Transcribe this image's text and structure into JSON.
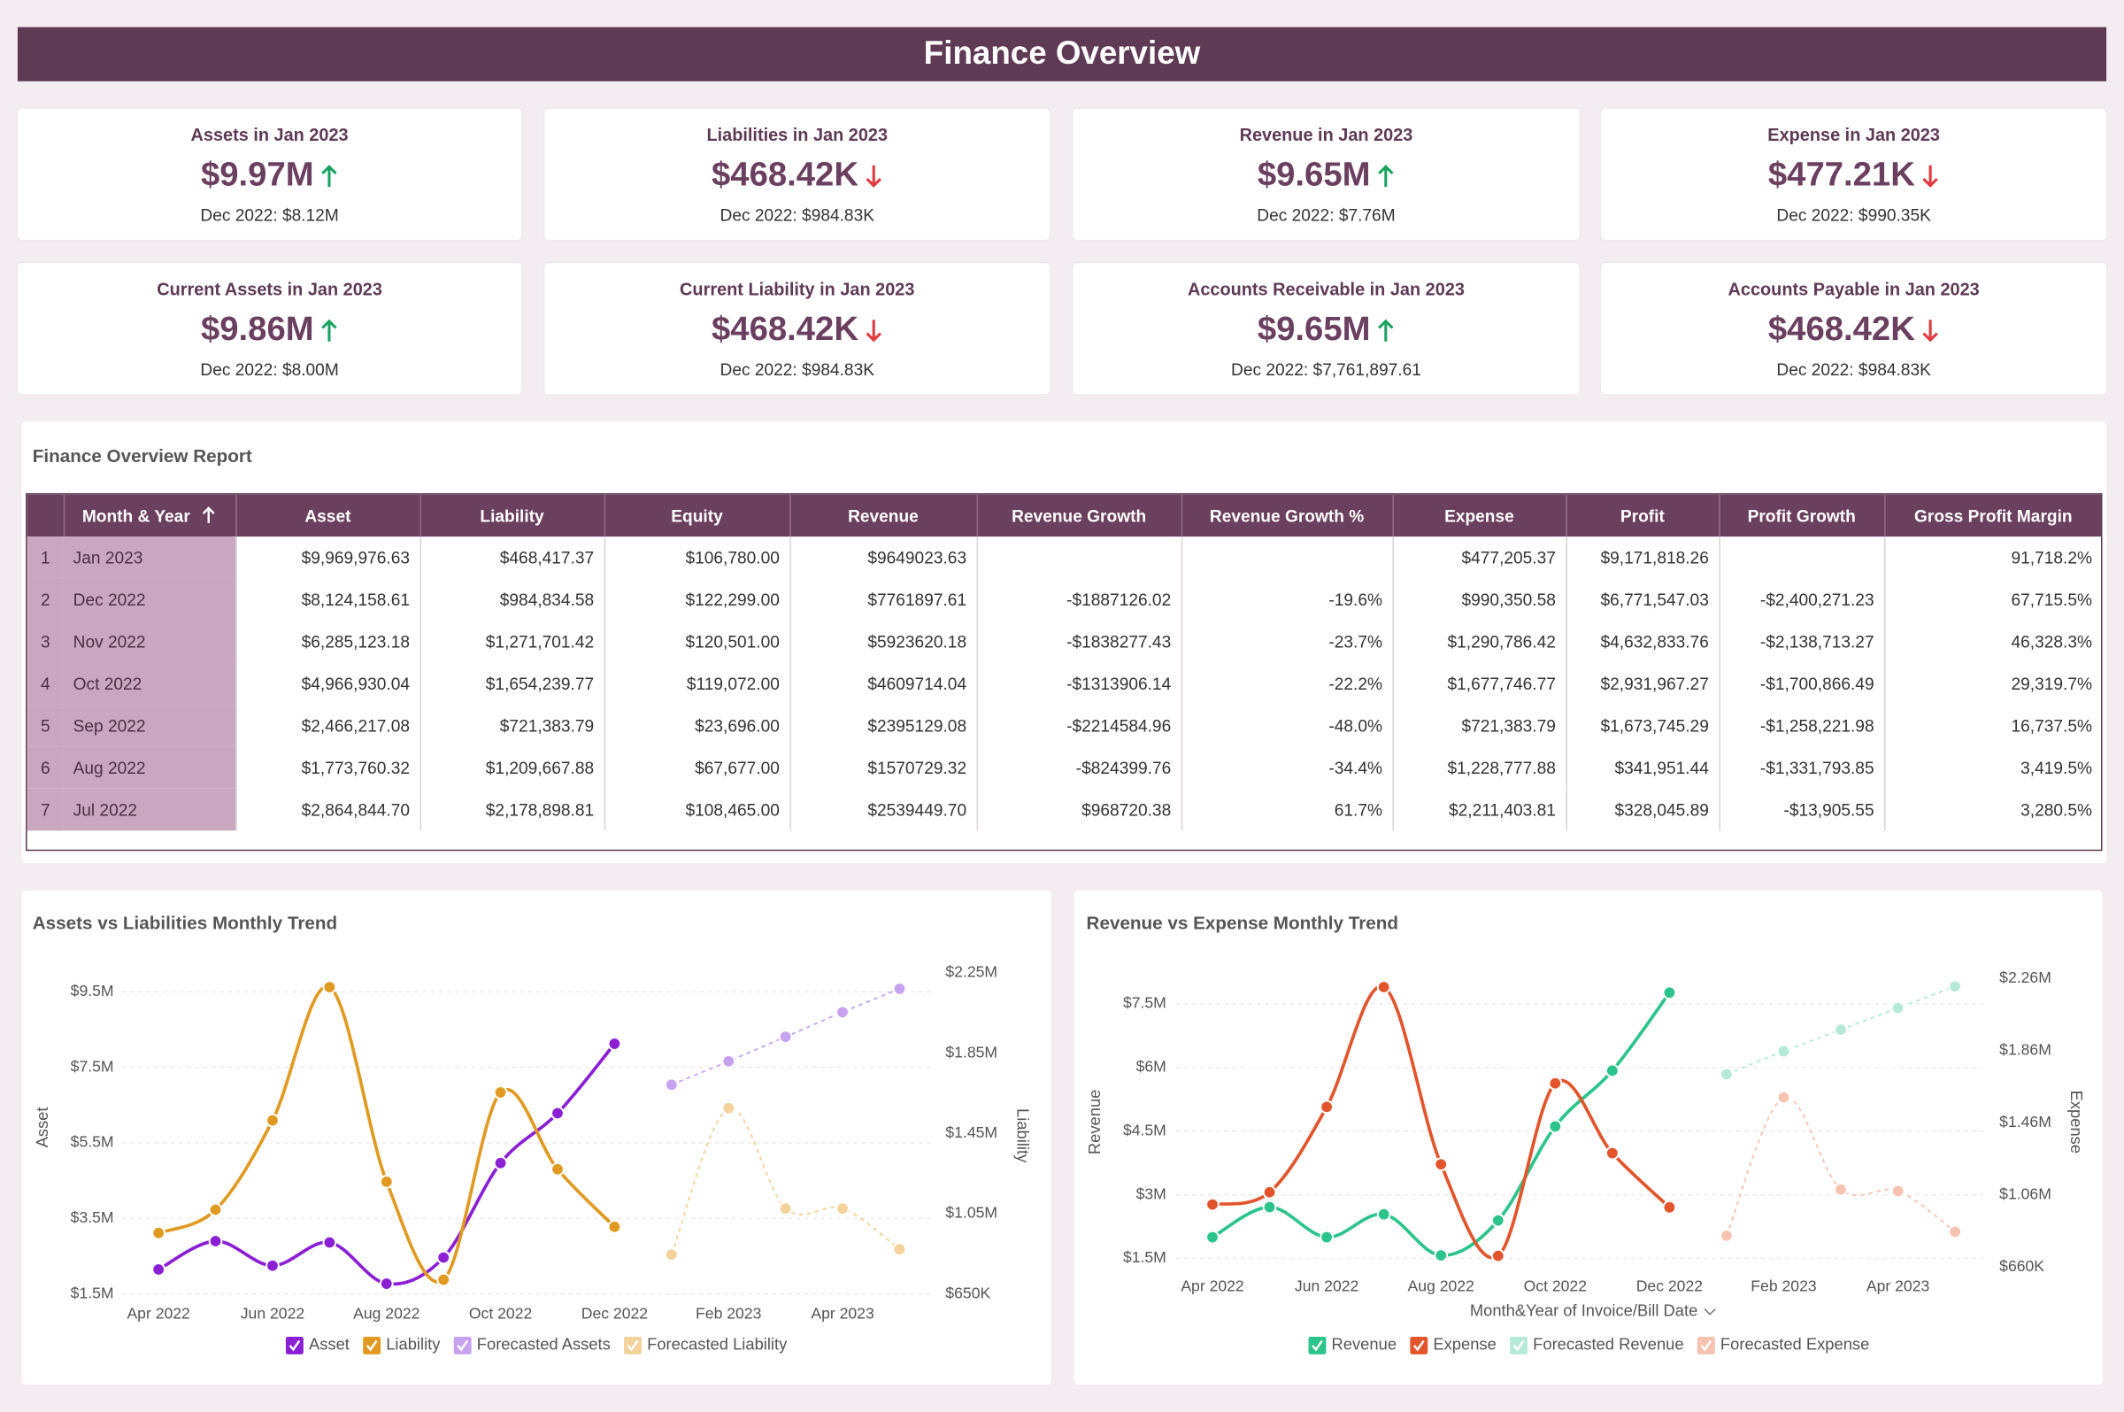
{
  "header": {
    "title": "Finance Overview"
  },
  "kpis": [
    {
      "label": "Assets in Jan 2023",
      "value": "$9.97M",
      "trend": "up",
      "comparison": "Dec 2022: $8.12M"
    },
    {
      "label": "Liabilities in Jan 2023",
      "value": "$468.42K",
      "trend": "down",
      "comparison": "Dec 2022: $984.83K"
    },
    {
      "label": "Revenue in Jan 2023",
      "value": "$9.65M",
      "trend": "up",
      "comparison": "Dec 2022: $7.76M"
    },
    {
      "label": "Expense in Jan 2023",
      "value": "$477.21K",
      "trend": "down",
      "comparison": "Dec 2022: $990.35K"
    },
    {
      "label": "Current Assets in Jan 2023",
      "value": "$9.86M",
      "trend": "up",
      "comparison": "Dec 2022: $8.00M"
    },
    {
      "label": "Current Liability in Jan 2023",
      "value": "$468.42K",
      "trend": "down",
      "comparison": "Dec 2022: $984.83K"
    },
    {
      "label": "Accounts Receivable in Jan 2023",
      "value": "$9.65M",
      "trend": "up",
      "comparison": "Dec 2022: $7,761,897.61"
    },
    {
      "label": "Accounts Payable in Jan 2023",
      "value": "$468.42K",
      "trend": "down",
      "comparison": "Dec 2022: $984.83K"
    }
  ],
  "table": {
    "title": "Finance Overview Report",
    "columns": [
      "Month & Year",
      "Asset",
      "Liability",
      "Equity",
      "Revenue",
      "Revenue Growth",
      "Revenue Growth %",
      "Expense",
      "Profit",
      "Profit Growth",
      "Gross Profit Margin"
    ],
    "rows": [
      {
        "number": 1,
        "cells": [
          "Jan 2023",
          "$9,969,976.63",
          "$468,417.37",
          "$106,780.00",
          "$9649023.63",
          null,
          null,
          "$477,205.37",
          "$9,171,818.26",
          null,
          "91,718.2%"
        ]
      },
      {
        "number": 2,
        "cells": [
          "Dec 2022",
          "$8,124,158.61",
          "$984,834.58",
          "$122,299.00",
          "$7761897.61",
          "-$1887126.02",
          "-19.6%",
          "$990,350.58",
          "$6,771,547.03",
          "-$2,400,271.23",
          "67,715.5%"
        ]
      },
      {
        "number": 3,
        "cells": [
          "Nov 2022",
          "$6,285,123.18",
          "$1,271,701.42",
          "$120,501.00",
          "$5923620.18",
          "-$1838277.43",
          "-23.7%",
          "$1,290,786.42",
          "$4,632,833.76",
          "-$2,138,713.27",
          "46,328.3%"
        ]
      },
      {
        "number": 4,
        "cells": [
          "Oct 2022",
          "$4,966,930.04",
          "$1,654,239.77",
          "$119,072.00",
          "$4609714.04",
          "-$1313906.14",
          "-22.2%",
          "$1,677,746.77",
          "$2,931,967.27",
          "-$1,700,866.49",
          "29,319.7%"
        ]
      },
      {
        "number": 5,
        "cells": [
          "Sep 2022",
          "$2,466,217.08",
          "$721,383.79",
          "$23,696.00",
          "$2395129.08",
          "-$2214584.96",
          "-48.0%",
          "$721,383.79",
          "$1,673,745.29",
          "-$1,258,221.98",
          "16,737.5%"
        ]
      },
      {
        "number": 6,
        "cells": [
          "Aug 2022",
          "$1,773,760.32",
          "$1,209,667.88",
          "$67,677.00",
          "$1570729.32",
          "-$824399.76",
          "-34.4%",
          "$1,228,777.88",
          "$341,951.44",
          "-$1,331,793.85",
          "3,419.5%"
        ]
      },
      {
        "number": 7,
        "cells": [
          "Jul 2022",
          "$2,864,844.70",
          "$2,178,898.81",
          "$108,465.00",
          "$2539449.70",
          "$968720.38",
          "61.7%",
          "$2,211,403.81",
          "$328,045.89",
          "-$13,905.55",
          "3,280.5%"
        ]
      }
    ]
  },
  "chart_data": [
    {
      "type": "line",
      "title": "Assets vs Liabilities Monthly Trend",
      "categories": [
        "Apr 2022",
        null,
        "Jun 2022",
        null,
        "Aug 2022",
        null,
        "Oct 2022",
        null,
        "Dec 2022",
        null,
        "Feb 2023",
        null,
        "Apr 2023",
        null
      ],
      "ylabel": "Asset",
      "y2label": "Liability",
      "ylim": [
        1500000,
        10000000
      ],
      "yticks": [
        {
          "value": 1500000,
          "label": "$1.5M"
        },
        {
          "value": 3500000,
          "label": "$3.5M"
        },
        {
          "value": 5500000,
          "label": "$5.5M"
        },
        {
          "value": 7500000,
          "label": "$7.5M"
        },
        {
          "value": 9500000,
          "label": "$9.5M"
        }
      ],
      "y2lim": [
        650000,
        2250000
      ],
      "y2ticks": [
        {
          "value": 650000,
          "label": "$650K"
        },
        {
          "value": 1050000,
          "label": "$1.05M"
        },
        {
          "value": 1450000,
          "label": "$1.45M"
        },
        {
          "value": 1850000,
          "label": "$1.85M"
        },
        {
          "value": 2250000,
          "label": "$2.25M"
        }
      ],
      "grid": true,
      "legend": "bottom",
      "series": [
        {
          "name": "Asset",
          "color": "#8a1fd4",
          "axis": "y",
          "dashed": false,
          "values": [
            2150000,
            2900000,
            2250000,
            2864844.7,
            1773760.32,
            2466217.08,
            4966930.04,
            6285123.18,
            8124158.61,
            null,
            null,
            null,
            null,
            null
          ]
        },
        {
          "name": "Liability",
          "color": "#e09a22",
          "axis": "y2",
          "dashed": false,
          "values": [
            954000,
            1070000,
            1515000,
            2178898.81,
            1209667.88,
            721383.79,
            1654239.77,
            1271701.42,
            984834.58,
            null,
            null,
            null,
            null,
            null
          ]
        },
        {
          "name": "Forecasted Assets",
          "color": "#c7a2ef",
          "axis": "y",
          "dashed": true,
          "values": [
            null,
            null,
            null,
            null,
            null,
            null,
            null,
            null,
            null,
            7040000,
            7660000,
            8310000,
            8960000,
            9580000
          ]
        },
        {
          "name": "Forecasted Liability",
          "color": "#f3d29c",
          "axis": "y2",
          "dashed": true,
          "values": [
            null,
            null,
            null,
            null,
            null,
            null,
            null,
            null,
            null,
            846000,
            1576000,
            1076000,
            1076000,
            873000
          ]
        }
      ]
    },
    {
      "type": "line",
      "title": "Revenue vs Expense Monthly Trend",
      "categories": [
        "Apr 2022",
        null,
        "Jun 2022",
        null,
        "Aug 2022",
        null,
        "Oct 2022",
        null,
        "Dec 2022",
        null,
        "Feb 2023",
        null,
        "Apr 2023",
        null
      ],
      "xlabel": "Month&Year of Invoice/Bill Date",
      "ylabel": "Revenue",
      "y2label": "Expense",
      "ylim": [
        1300000,
        8100000
      ],
      "yticks": [
        {
          "value": 1500000,
          "label": "$1.5M"
        },
        {
          "value": 3000000,
          "label": "$3M"
        },
        {
          "value": 4500000,
          "label": "$4.5M"
        },
        {
          "value": 6000000,
          "label": "$6M"
        },
        {
          "value": 7500000,
          "label": "$7.5M"
        }
      ],
      "y2lim": [
        660000,
        2260000
      ],
      "y2ticks": [
        {
          "value": 660000,
          "label": "$660K"
        },
        {
          "value": 1060000,
          "label": "$1.06M"
        },
        {
          "value": 1460000,
          "label": "$1.46M"
        },
        {
          "value": 1860000,
          "label": "$1.86M"
        },
        {
          "value": 2260000,
          "label": "$2.26M"
        }
      ],
      "grid": true,
      "legend": "bottom",
      "series": [
        {
          "name": "Revenue",
          "color": "#2cc48b",
          "axis": "y",
          "dashed": false,
          "values": [
            2000000,
            2710000,
            2000000,
            2539449.7,
            1570729.32,
            2395129.08,
            4609714.04,
            5923620.18,
            7761897.61,
            null,
            null,
            null,
            null,
            null
          ]
        },
        {
          "name": "Expense",
          "color": "#e2552c",
          "axis": "y2",
          "dashed": false,
          "values": [
            1006000,
            1074000,
            1547000,
            2211403.81,
            1228777.88,
            721383.79,
            1677746.77,
            1290786.42,
            990350.58,
            null,
            null,
            null,
            null,
            null
          ]
        },
        {
          "name": "Forecasted Revenue",
          "color": "#b6ead6",
          "axis": "y",
          "dashed": true,
          "values": [
            null,
            null,
            null,
            null,
            null,
            null,
            null,
            null,
            null,
            5840000,
            6380000,
            6890000,
            7400000,
            7910000
          ]
        },
        {
          "name": "Forecasted Expense",
          "color": "#f6c3b1",
          "axis": "y2",
          "dashed": true,
          "values": [
            null,
            null,
            null,
            null,
            null,
            null,
            null,
            null,
            null,
            833000,
            1600000,
            1089000,
            1081000,
            855000
          ]
        }
      ]
    }
  ]
}
